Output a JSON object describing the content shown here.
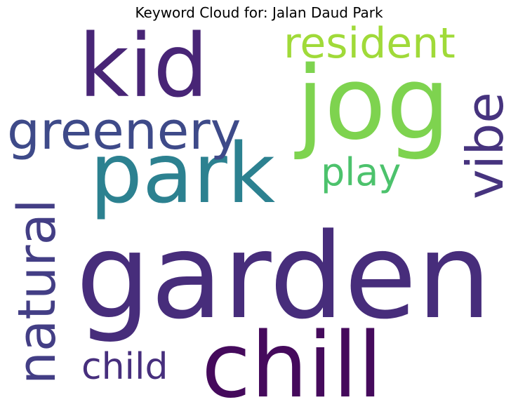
{
  "title": "Keyword Cloud for: Jalan Daud Park",
  "words": [
    {
      "text": "garden",
      "color": "#472d7b"
    },
    {
      "text": "park",
      "color": "#2c8190"
    },
    {
      "text": "chill",
      "color": "#450a5c"
    },
    {
      "text": "jog",
      "color": "#7ed34f"
    },
    {
      "text": "kid",
      "color": "#482576"
    },
    {
      "text": "greenery",
      "color": "#3e4a89"
    },
    {
      "text": "natural",
      "color": "#433e85"
    },
    {
      "text": "resident",
      "color": "#a0da39"
    },
    {
      "text": "vibe",
      "color": "#46337e"
    },
    {
      "text": "play",
      "color": "#4cc26c"
    },
    {
      "text": "child",
      "color": "#472f7d"
    }
  ]
}
